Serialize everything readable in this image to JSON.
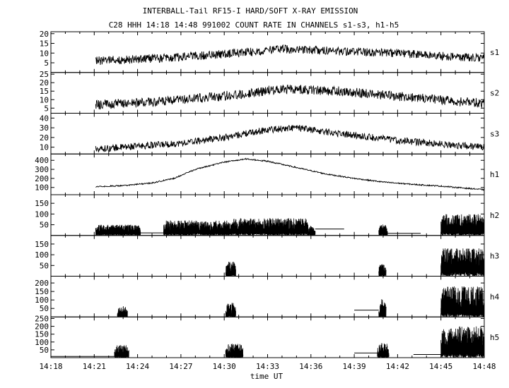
{
  "chart_data": {
    "type": "line",
    "title": "INTERBALL-Tail RF15-I HARD/SOFT X-RAY EMISSION",
    "subtitle": "C28 HHH 14:18 14:48 991002  COUNT RATE IN CHANNELS s1-s3, h1-h5",
    "xlabel": "time UT",
    "x_range_minutes": [
      0,
      30
    ],
    "x_ticks": [
      {
        "label": "14:18",
        "m": 0
      },
      {
        "label": "14:21",
        "m": 3
      },
      {
        "label": "14:24",
        "m": 6
      },
      {
        "label": "14:27",
        "m": 9
      },
      {
        "label": "14:30",
        "m": 12
      },
      {
        "label": "14:33",
        "m": 15
      },
      {
        "label": "14:36",
        "m": 18
      },
      {
        "label": "14:39",
        "m": 21
      },
      {
        "label": "14:42",
        "m": 24
      },
      {
        "label": "14:45",
        "m": 27
      },
      {
        "label": "14:48",
        "m": 30
      }
    ],
    "grid": false,
    "panels": [
      {
        "name": "s1",
        "ylim": [
          0,
          21
        ],
        "yticks": [
          5,
          10,
          15,
          20
        ],
        "mode": "line",
        "start": 3.1,
        "end": 30,
        "profile": [
          [
            3.1,
            6
          ],
          [
            8,
            7.5
          ],
          [
            13,
            10
          ],
          [
            16,
            12
          ],
          [
            20,
            11
          ],
          [
            24,
            10
          ],
          [
            28,
            8
          ],
          [
            30,
            7.5
          ]
        ],
        "noise": 2.2
      },
      {
        "name": "s2",
        "ylim": [
          2,
          26
        ],
        "yticks": [
          5,
          10,
          15,
          20,
          25
        ],
        "mode": "line",
        "start": 3.1,
        "end": 30,
        "profile": [
          [
            3.1,
            7
          ],
          [
            8,
            9
          ],
          [
            13,
            13
          ],
          [
            16,
            16.5
          ],
          [
            20,
            15
          ],
          [
            24,
            12
          ],
          [
            28,
            9
          ],
          [
            30,
            8
          ]
        ],
        "noise": 2.8
      },
      {
        "name": "s3",
        "ylim": [
          3,
          45
        ],
        "yticks": [
          10,
          20,
          30,
          40
        ],
        "mode": "line",
        "start": 3.1,
        "end": 30,
        "profile": [
          [
            3.1,
            8
          ],
          [
            6,
            11
          ],
          [
            9,
            14
          ],
          [
            12,
            20
          ],
          [
            15,
            28
          ],
          [
            17,
            30
          ],
          [
            20,
            24
          ],
          [
            24,
            17
          ],
          [
            28,
            12
          ],
          [
            30,
            10
          ]
        ],
        "noise": 3.5
      },
      {
        "name": "h1",
        "ylim": [
          20,
          470
        ],
        "yticks": [
          100,
          200,
          300,
          400
        ],
        "mode": "line",
        "start": 3.1,
        "end": 30,
        "profile": [
          [
            3.1,
            110
          ],
          [
            5,
            120
          ],
          [
            7,
            150
          ],
          [
            8.5,
            200
          ],
          [
            10,
            300
          ],
          [
            12,
            380
          ],
          [
            13.5,
            415
          ],
          [
            15,
            390
          ],
          [
            17,
            320
          ],
          [
            19,
            250
          ],
          [
            21,
            200
          ],
          [
            23,
            160
          ],
          [
            25,
            135
          ],
          [
            27,
            115
          ],
          [
            28.5,
            95
          ],
          [
            30,
            75
          ]
        ],
        "noise": 7
      },
      {
        "name": "h2",
        "ylim": [
          0,
          190
        ],
        "yticks": [
          50,
          100,
          150
        ],
        "mode": "bursts",
        "bursts": [
          {
            "start": 3.1,
            "end": 6.2,
            "base": 15,
            "amp": 35
          },
          {
            "start": 7.8,
            "end": 12.5,
            "base": 20,
            "amp": 50
          },
          {
            "start": 12.5,
            "end": 17.8,
            "base": 25,
            "amp": 55
          },
          {
            "start": 17.8,
            "end": 18.3,
            "base": 15,
            "amp": 30
          },
          {
            "start": 22.7,
            "end": 23.3,
            "base": 10,
            "amp": 45
          },
          {
            "start": 27.0,
            "end": 30,
            "base": 30,
            "amp": 70
          }
        ],
        "flats": [
          {
            "start": 6.2,
            "end": 7.8,
            "value": 12
          },
          {
            "start": 18.3,
            "end": 20.3,
            "value": 30
          },
          {
            "start": 23.3,
            "end": 25.6,
            "value": 10
          }
        ]
      },
      {
        "name": "h3",
        "ylim": [
          0,
          190
        ],
        "yticks": [
          50,
          100,
          150
        ],
        "mode": "bursts",
        "bursts": [
          {
            "start": 12.1,
            "end": 12.8,
            "base": 10,
            "amp": 60
          },
          {
            "start": 22.7,
            "end": 23.2,
            "base": 10,
            "amp": 55
          },
          {
            "start": 27.0,
            "end": 30,
            "base": 40,
            "amp": 90
          }
        ],
        "flats": []
      },
      {
        "name": "h4",
        "ylim": [
          0,
          240
        ],
        "yticks": [
          50,
          100,
          150,
          200
        ],
        "mode": "bursts",
        "bursts": [
          {
            "start": 4.6,
            "end": 5.3,
            "base": 10,
            "amp": 55
          },
          {
            "start": 12.1,
            "end": 12.8,
            "base": 15,
            "amp": 70
          },
          {
            "start": 22.7,
            "end": 23.2,
            "base": 15,
            "amp": 90
          },
          {
            "start": 27.0,
            "end": 30,
            "base": 40,
            "amp": 140
          }
        ],
        "flats": [
          {
            "start": 21.0,
            "end": 22.7,
            "value": 40
          }
        ]
      },
      {
        "name": "h5",
        "ylim": [
          0,
          260
        ],
        "yticks": [
          50,
          100,
          150,
          200,
          250
        ],
        "mode": "bursts",
        "bursts": [
          {
            "start": 4.4,
            "end": 5.4,
            "base": 15,
            "amp": 65
          },
          {
            "start": 12.1,
            "end": 13.3,
            "base": 15,
            "amp": 75
          },
          {
            "start": 22.6,
            "end": 23.4,
            "base": 15,
            "amp": 80
          },
          {
            "start": 27.0,
            "end": 30,
            "base": 50,
            "amp": 150
          }
        ],
        "flats": [
          {
            "start": 0,
            "end": 4.4,
            "value": 8
          },
          {
            "start": 21.0,
            "end": 22.6,
            "value": 30
          },
          {
            "start": 25.1,
            "end": 27.0,
            "value": 20
          }
        ]
      }
    ]
  }
}
